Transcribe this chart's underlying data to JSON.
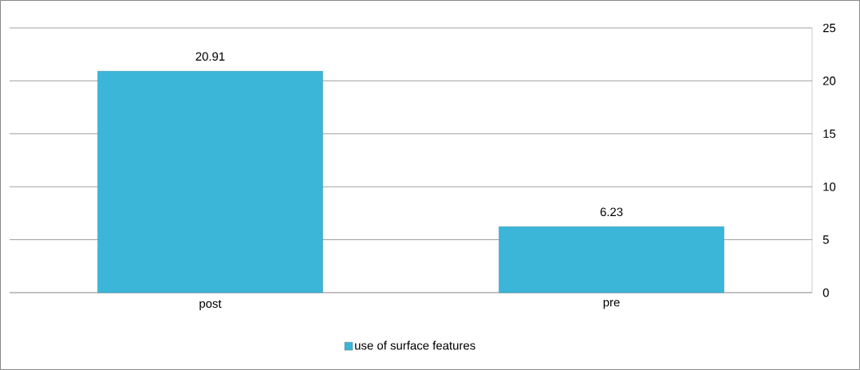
{
  "chart_data": {
    "type": "bar",
    "categories": [
      "post",
      "pre"
    ],
    "series": [
      {
        "name": "use of surface features",
        "color": "#3bb6d9",
        "values": [
          20.91,
          6.23
        ]
      }
    ],
    "ylim": [
      0,
      25
    ],
    "yticks": [
      0,
      5,
      10,
      15,
      20,
      25
    ],
    "grid": "y",
    "legend": "bottom",
    "data_labels": true
  }
}
